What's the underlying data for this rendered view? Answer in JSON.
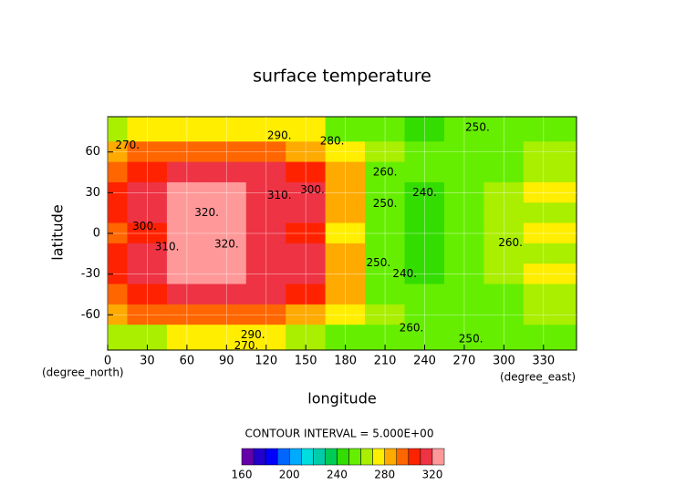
{
  "chart_data": {
    "type": "contour",
    "title": "surface temperature",
    "x_label": "longitude",
    "y_label": "latitude",
    "x_unit": "(degree_east)",
    "y_unit": "(degree_north)",
    "contour_interval": "CONTOUR INTERVAL = 5.000E+00",
    "xlim": [
      0,
      355
    ],
    "ylim": [
      -86,
      86
    ],
    "xticks": [
      0,
      30,
      60,
      90,
      120,
      150,
      180,
      210,
      240,
      270,
      300,
      330
    ],
    "yticks": [
      -60,
      -30,
      0,
      30,
      60
    ],
    "x": [
      0,
      30,
      60,
      90,
      120,
      150,
      180,
      210,
      240,
      270,
      300,
      330
    ],
    "y": [
      75,
      60,
      45,
      30,
      15,
      0,
      -15,
      -30,
      -45,
      -60,
      -75
    ],
    "z": [
      [
        265,
        270,
        275,
        275,
        275,
        270,
        255,
        250,
        248,
        250,
        252,
        258
      ],
      [
        280,
        290,
        295,
        295,
        295,
        285,
        270,
        260,
        255,
        255,
        258,
        262
      ],
      [
        295,
        305,
        310,
        312,
        310,
        305,
        280,
        255,
        250,
        255,
        258,
        265
      ],
      [
        300,
        312,
        322,
        322,
        318,
        310,
        285,
        250,
        245,
        255,
        262,
        270
      ],
      [
        300,
        310,
        322,
        320,
        318,
        310,
        282,
        250,
        245,
        255,
        262,
        268
      ],
      [
        295,
        305,
        320,
        322,
        315,
        305,
        275,
        250,
        245,
        255,
        260,
        270
      ],
      [
        300,
        310,
        322,
        320,
        318,
        310,
        282,
        250,
        245,
        255,
        262,
        268
      ],
      [
        300,
        312,
        322,
        322,
        318,
        310,
        285,
        250,
        245,
        255,
        262,
        270
      ],
      [
        295,
        305,
        310,
        312,
        310,
        305,
        280,
        255,
        250,
        255,
        258,
        265
      ],
      [
        280,
        290,
        295,
        295,
        295,
        285,
        270,
        260,
        255,
        255,
        258,
        262
      ],
      [
        262,
        268,
        272,
        272,
        272,
        268,
        255,
        252,
        250,
        250,
        250,
        255
      ]
    ],
    "levels": [
      160,
      170,
      180,
      190,
      200,
      210,
      220,
      230,
      240,
      250,
      260,
      270,
      280,
      290,
      300,
      310,
      320
    ],
    "colors": [
      "#6600aa",
      "#2200cc",
      "#0000ff",
      "#0066ff",
      "#00aaff",
      "#00dddd",
      "#00ccaa",
      "#00cc55",
      "#33dd00",
      "#66ee00",
      "#aaee00",
      "#ffee00",
      "#ffaa00",
      "#ff6600",
      "#ff2200",
      "#ee3344",
      "#ff9999"
    ],
    "colorbar_ticks": [
      160,
      200,
      240,
      280,
      320
    ],
    "grid": true,
    "contour_labels": [
      {
        "value": 250,
        "label": "250.",
        "lon": 280,
        "lat": 78
      },
      {
        "value": 290,
        "label": "290.",
        "lon": 130,
        "lat": 72
      },
      {
        "value": 280,
        "label": "280.",
        "lon": 170,
        "lat": 68
      },
      {
        "value": 270,
        "label": "270.",
        "lon": 15,
        "lat": 65
      },
      {
        "value": 260,
        "label": "260.",
        "lon": 210,
        "lat": 45
      },
      {
        "value": 240,
        "label": "240.",
        "lon": 240,
        "lat": 30
      },
      {
        "value": 250,
        "label": "250.",
        "lon": 210,
        "lat": 22
      },
      {
        "value": 300,
        "label": "300.",
        "lon": 155,
        "lat": 32
      },
      {
        "value": 310,
        "label": "310.",
        "lon": 130,
        "lat": 28
      },
      {
        "value": 320,
        "label": "320.",
        "lon": 75,
        "lat": 15
      },
      {
        "value": 300,
        "label": "300.",
        "lon": 28,
        "lat": 5
      },
      {
        "value": 310,
        "label": "310.",
        "lon": 45,
        "lat": -10
      },
      {
        "value": 320,
        "label": "320.",
        "lon": 90,
        "lat": -8
      },
      {
        "value": 260,
        "label": "260.",
        "lon": 305,
        "lat": -7
      },
      {
        "value": 250,
        "label": "250.",
        "lon": 205,
        "lat": -22
      },
      {
        "value": 240,
        "label": "240.",
        "lon": 225,
        "lat": -30
      },
      {
        "value": 260,
        "label": "260.",
        "lon": 230,
        "lat": -70
      },
      {
        "value": 290,
        "label": "290.",
        "lon": 110,
        "lat": -75
      },
      {
        "value": 270,
        "label": "270.",
        "lon": 105,
        "lat": -83
      },
      {
        "value": 250,
        "label": "250.",
        "lon": 275,
        "lat": -78
      }
    ]
  }
}
